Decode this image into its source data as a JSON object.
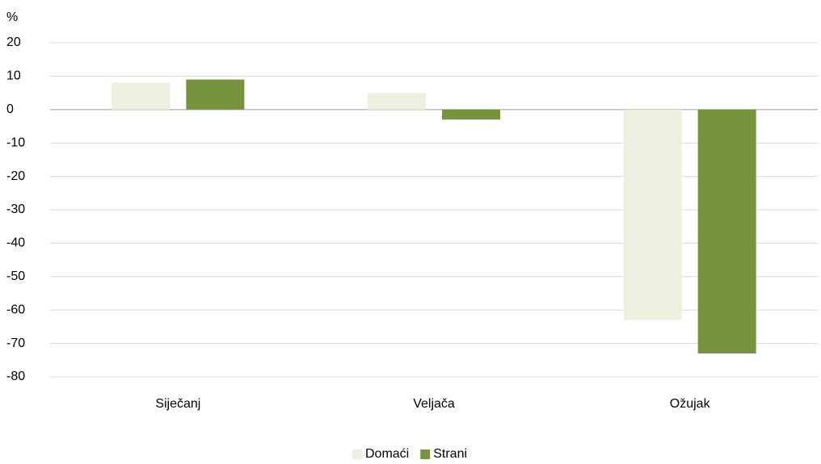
{
  "chart_data": {
    "type": "bar",
    "unit_label": "%",
    "categories": [
      "Siječanj",
      "Veljača",
      "Ožujak"
    ],
    "series": [
      {
        "name": "Domaći",
        "color": "#ebf1de",
        "values": [
          8,
          5,
          -63
        ]
      },
      {
        "name": "Strani",
        "color": "#77933c",
        "values": [
          9,
          -3,
          -73
        ]
      }
    ],
    "ylim": [
      -80,
      20
    ],
    "yticks": [
      -80,
      -70,
      -60,
      -50,
      -40,
      -30,
      -20,
      -10,
      0,
      10,
      20
    ],
    "grid": true,
    "legend": "bottom"
  }
}
